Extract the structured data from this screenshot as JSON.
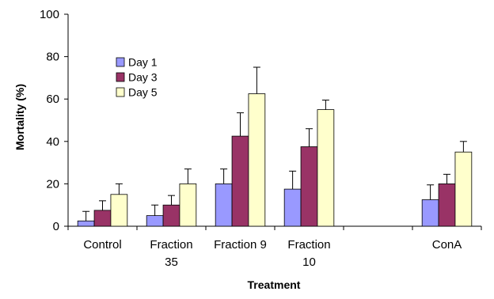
{
  "chart_data": {
    "type": "bar",
    "xlabel": "Treatment",
    "ylabel": "Mortality  (%)",
    "ylim": [
      0,
      100
    ],
    "yticks": [
      0,
      20,
      40,
      60,
      80,
      100
    ],
    "grid": false,
    "legend_position": "top-left",
    "categories": [
      {
        "lines": [
          "Control"
        ]
      },
      {
        "lines": [
          "Fraction",
          "35"
        ]
      },
      {
        "lines": [
          "Fraction 9"
        ]
      },
      {
        "lines": [
          "Fraction",
          "10"
        ]
      },
      {
        "lines": [
          ""
        ]
      },
      {
        "lines": [
          "ConA"
        ]
      }
    ],
    "series": [
      {
        "name": "Day 1",
        "color": "#9999ff",
        "values": [
          2.5,
          5,
          20,
          17.5,
          null,
          12.5
        ],
        "errors": [
          4.5,
          5,
          7,
          8.5,
          null,
          7
        ]
      },
      {
        "name": "Day 3",
        "color": "#993366",
        "values": [
          7.5,
          10,
          42.5,
          37.5,
          null,
          20
        ],
        "errors": [
          4.5,
          4.5,
          11,
          8.5,
          null,
          4.5
        ]
      },
      {
        "name": "Day 5",
        "color": "#ffffcc",
        "values": [
          15,
          20,
          62.5,
          55,
          null,
          35
        ],
        "errors": [
          5,
          7,
          12.5,
          4.5,
          null,
          5
        ]
      }
    ]
  }
}
